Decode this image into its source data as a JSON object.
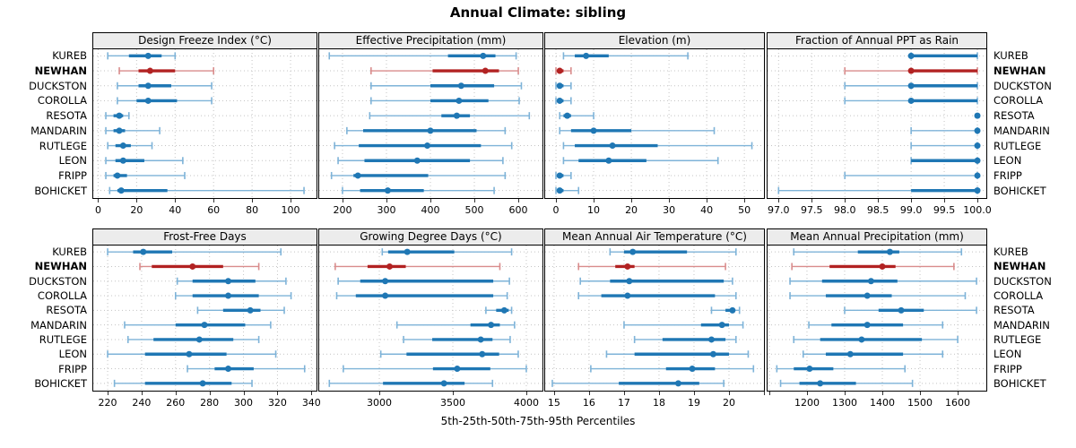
{
  "title": "Annual Climate: sibling",
  "caption": "5th-25th-50th-75th-95th Percentiles",
  "sites": [
    "KUREB",
    "NEWHAN",
    "DUCKSTON",
    "COROLLA",
    "RESOTA",
    "MANDARIN",
    "RUTLEGE",
    "LEON",
    "FRIPP",
    "BOHICKET"
  ],
  "highlight_site": "NEWHAN",
  "colors": {
    "series": "#1f77b4",
    "series_light": "#7eb3d8",
    "highlight": "#b22222",
    "highlight_light": "#d98c8c",
    "grid": "#c4c4c4",
    "strip_bg": "#ececec",
    "border": "#000000"
  },
  "percentiles": [
    "5th",
    "25th",
    "50th",
    "75th",
    "95th"
  ],
  "chart_data": [
    {
      "type": "errorbar-dotplot",
      "title": "Design Freeze Index (°C)",
      "xlim": [
        -3,
        113.5
      ],
      "ticks": [
        0,
        20,
        40,
        60,
        80,
        100
      ],
      "tick_labels": [
        "0",
        "20",
        "40",
        "60",
        "80",
        "100"
      ],
      "extra_ticks": [],
      "series": [
        {
          "name": "KUREB",
          "values": [
            5,
            16,
            26,
            33,
            40
          ]
        },
        {
          "name": "NEWHAN",
          "values": [
            11,
            21,
            27,
            40,
            60
          ]
        },
        {
          "name": "DUCKSTON",
          "values": [
            10,
            21,
            26,
            38,
            59
          ]
        },
        {
          "name": "COROLLA",
          "values": [
            10,
            20,
            26,
            41,
            59
          ]
        },
        {
          "name": "RESOTA",
          "values": [
            4,
            8,
            11,
            13,
            16
          ]
        },
        {
          "name": "MANDARIN",
          "values": [
            4,
            8,
            11,
            14,
            32
          ]
        },
        {
          "name": "RUTLEGE",
          "values": [
            5,
            9,
            13,
            17,
            28
          ]
        },
        {
          "name": "LEON",
          "values": [
            4,
            9,
            13,
            24,
            44
          ]
        },
        {
          "name": "FRIPP",
          "values": [
            4,
            8,
            10,
            15,
            45
          ]
        },
        {
          "name": "BOHICKET",
          "values": [
            6,
            10,
            12,
            36,
            107
          ]
        }
      ]
    },
    {
      "type": "errorbar-dotplot",
      "title": "Effective Precipitation (mm)",
      "xlim": [
        145,
        655
      ],
      "ticks": [
        200,
        300,
        400,
        500,
        600
      ],
      "tick_labels": [
        "200",
        "300",
        "400",
        "500",
        "600"
      ],
      "extra_ticks": [],
      "series": [
        {
          "name": "KUREB",
          "values": [
            170,
            440,
            520,
            548,
            595
          ]
        },
        {
          "name": "NEWHAN",
          "values": [
            265,
            405,
            525,
            556,
            600
          ]
        },
        {
          "name": "DUCKSTON",
          "values": [
            265,
            400,
            470,
            545,
            607
          ]
        },
        {
          "name": "COROLLA",
          "values": [
            265,
            400,
            465,
            532,
            602
          ]
        },
        {
          "name": "RESOTA",
          "values": [
            262,
            425,
            460,
            490,
            625
          ]
        },
        {
          "name": "MANDARIN",
          "values": [
            210,
            247,
            400,
            505,
            570
          ]
        },
        {
          "name": "RUTLEGE",
          "values": [
            182,
            237,
            393,
            515,
            585
          ]
        },
        {
          "name": "LEON",
          "values": [
            190,
            250,
            370,
            490,
            565
          ]
        },
        {
          "name": "FRIPP",
          "values": [
            175,
            225,
            235,
            395,
            570
          ]
        },
        {
          "name": "BOHICKET",
          "values": [
            200,
            240,
            303,
            385,
            545
          ]
        }
      ]
    },
    {
      "type": "errorbar-dotplot",
      "title": "Elevation (m)",
      "xlim": [
        -3.1,
        55.2
      ],
      "ticks": [
        0,
        10,
        20,
        30,
        40,
        50
      ],
      "tick_labels": [
        "0",
        "10",
        "20",
        "30",
        "40",
        "50"
      ],
      "extra_ticks": [],
      "series": [
        {
          "name": "KUREB",
          "values": [
            2,
            5,
            8,
            14,
            35
          ]
        },
        {
          "name": "NEWHAN",
          "values": [
            0,
            0.5,
            1,
            2,
            4
          ]
        },
        {
          "name": "DUCKSTON",
          "values": [
            0,
            0.5,
            1,
            2,
            4
          ]
        },
        {
          "name": "COROLLA",
          "values": [
            0,
            0.5,
            1,
            2,
            4
          ]
        },
        {
          "name": "RESOTA",
          "values": [
            1,
            2,
            3,
            4,
            10
          ]
        },
        {
          "name": "MANDARIN",
          "values": [
            1,
            4,
            10,
            20,
            42
          ]
        },
        {
          "name": "RUTLEGE",
          "values": [
            2,
            5,
            15,
            27,
            52
          ]
        },
        {
          "name": "LEON",
          "values": [
            2,
            6,
            14,
            24,
            43
          ]
        },
        {
          "name": "FRIPP",
          "values": [
            0,
            0.5,
            1,
            2,
            4
          ]
        },
        {
          "name": "BOHICKET",
          "values": [
            0,
            0.5,
            1,
            2,
            6
          ]
        }
      ]
    },
    {
      "type": "errorbar-dotplot",
      "title": "Fraction of Annual PPT as Rain",
      "xlim": [
        96.82,
        100.135
      ],
      "ticks": [
        97.0,
        97.5,
        98.0,
        98.5,
        99.0,
        99.5,
        100.0
      ],
      "tick_labels": [
        "97.0",
        "97.5",
        "98.0",
        "98.5",
        "99.0",
        "99.5",
        "100.0"
      ],
      "extra_ticks": [],
      "series": [
        {
          "name": "KUREB",
          "values": [
            99,
            99,
            99,
            100,
            100
          ]
        },
        {
          "name": "NEWHAN",
          "values": [
            98,
            99,
            99,
            100,
            100
          ]
        },
        {
          "name": "DUCKSTON",
          "values": [
            98,
            99,
            99,
            100,
            100
          ]
        },
        {
          "name": "COROLLA",
          "values": [
            98,
            99,
            99,
            100,
            100
          ]
        },
        {
          "name": "RESOTA",
          "values": [
            100,
            100,
            100,
            100,
            100
          ]
        },
        {
          "name": "MANDARIN",
          "values": [
            99,
            100,
            100,
            100,
            100
          ]
        },
        {
          "name": "RUTLEGE",
          "values": [
            99,
            100,
            100,
            100,
            100
          ]
        },
        {
          "name": "LEON",
          "values": [
            99,
            99,
            100,
            100,
            100
          ]
        },
        {
          "name": "FRIPP",
          "values": [
            98,
            100,
            100,
            100,
            100
          ]
        },
        {
          "name": "BOHICKET",
          "values": [
            97,
            99,
            100,
            100,
            100
          ]
        }
      ]
    },
    {
      "type": "errorbar-dotplot",
      "title": "Frost-Free Days",
      "xlim": [
        211,
        343
      ],
      "ticks": [
        220,
        240,
        260,
        280,
        300,
        320,
        340
      ],
      "tick_labels": [
        "220",
        "240",
        "260",
        "280",
        "300",
        "320",
        "340"
      ],
      "extra_ticks": [],
      "series": [
        {
          "name": "KUREB",
          "values": [
            220,
            235,
            241,
            258,
            322
          ]
        },
        {
          "name": "NEWHAN",
          "values": [
            239,
            246,
            270,
            288,
            309
          ]
        },
        {
          "name": "DUCKSTON",
          "values": [
            261,
            270,
            291,
            307,
            325
          ]
        },
        {
          "name": "COROLLA",
          "values": [
            260,
            270,
            291,
            309,
            328
          ]
        },
        {
          "name": "RESOTA",
          "values": [
            273,
            288,
            304,
            310,
            324
          ]
        },
        {
          "name": "MANDARIN",
          "values": [
            230,
            260,
            277,
            301,
            316
          ]
        },
        {
          "name": "RUTLEGE",
          "values": [
            232,
            247,
            274,
            294,
            309
          ]
        },
        {
          "name": "LEON",
          "values": [
            220,
            242,
            268,
            290,
            319
          ]
        },
        {
          "name": "FRIPP",
          "values": [
            267,
            283,
            291,
            306,
            336
          ]
        },
        {
          "name": "BOHICKET",
          "values": [
            224,
            242,
            276,
            293,
            305
          ]
        }
      ]
    },
    {
      "type": "errorbar-dotplot",
      "title": "Growing Degree Days (°C)",
      "xlim": [
        2585,
        4110
      ],
      "ticks": [
        3000,
        3500,
        4000
      ],
      "tick_labels": [
        "3000",
        "3500",
        "4000"
      ],
      "extra_ticks": [],
      "series": [
        {
          "name": "KUREB",
          "values": [
            3020,
            3060,
            3190,
            3510,
            3900
          ]
        },
        {
          "name": "NEWHAN",
          "values": [
            2700,
            2920,
            3070,
            3180,
            3820
          ]
        },
        {
          "name": "DUCKSTON",
          "values": [
            2720,
            2870,
            3040,
            3775,
            3885
          ]
        },
        {
          "name": "COROLLA",
          "values": [
            2710,
            2840,
            3040,
            3775,
            3870
          ]
        },
        {
          "name": "RESOTA",
          "values": [
            3725,
            3795,
            3850,
            3880,
            3900
          ]
        },
        {
          "name": "MANDARIN",
          "values": [
            3120,
            3620,
            3760,
            3820,
            3920
          ]
        },
        {
          "name": "RUTLEGE",
          "values": [
            3165,
            3360,
            3690,
            3770,
            3890
          ]
        },
        {
          "name": "LEON",
          "values": [
            3010,
            3185,
            3700,
            3815,
            3945
          ]
        },
        {
          "name": "FRIPP",
          "values": [
            2755,
            3365,
            3530,
            3755,
            4000
          ]
        },
        {
          "name": "BOHICKET",
          "values": [
            2660,
            3025,
            3440,
            3580,
            3770
          ]
        }
      ]
    },
    {
      "type": "errorbar-dotplot",
      "title": "Mean Annual Air Temperature (°C)",
      "xlim": [
        14.72,
        21.0
      ],
      "ticks": [
        15,
        16,
        17,
        18,
        19,
        20
      ],
      "tick_labels": [
        "15",
        "16",
        "17",
        "18",
        "19",
        "20"
      ],
      "extra_ticks": [
        21
      ],
      "series": [
        {
          "name": "KUREB",
          "values": [
            16.6,
            17.0,
            17.25,
            18.8,
            20.2
          ]
        },
        {
          "name": "NEWHAN",
          "values": [
            15.7,
            16.75,
            17.1,
            17.3,
            19.9
          ]
        },
        {
          "name": "DUCKSTON",
          "values": [
            15.75,
            16.6,
            17.15,
            19.85,
            20.1
          ]
        },
        {
          "name": "COROLLA",
          "values": [
            15.7,
            16.35,
            17.1,
            19.6,
            20.2
          ]
        },
        {
          "name": "RESOTA",
          "values": [
            19.5,
            19.9,
            20.1,
            20.15,
            20.3
          ]
        },
        {
          "name": "MANDARIN",
          "values": [
            17.0,
            19.2,
            19.8,
            20.0,
            20.4
          ]
        },
        {
          "name": "RUTLEGE",
          "values": [
            17.3,
            18.1,
            19.5,
            19.9,
            20.2
          ]
        },
        {
          "name": "LEON",
          "values": [
            16.5,
            17.3,
            19.55,
            20.0,
            20.55
          ]
        },
        {
          "name": "FRIPP",
          "values": [
            16.05,
            18.2,
            18.95,
            19.6,
            20.7
          ]
        },
        {
          "name": "BOHICKET",
          "values": [
            14.95,
            16.85,
            18.55,
            19.15,
            19.85
          ]
        }
      ]
    },
    {
      "type": "errorbar-dotplot",
      "title": "Mean Annual Precipitation (mm)",
      "xlim": [
        1093,
        1676
      ],
      "ticks": [
        1200,
        1300,
        1400,
        1500,
        1600
      ],
      "tick_labels": [
        "1200",
        "1300",
        "1400",
        "1500",
        "1600"
      ],
      "extra_ticks": [
        1100
      ],
      "series": [
        {
          "name": "KUREB",
          "values": [
            1165,
            1335,
            1420,
            1445,
            1610
          ]
        },
        {
          "name": "NEWHAN",
          "values": [
            1160,
            1260,
            1400,
            1435,
            1590
          ]
        },
        {
          "name": "DUCKSTON",
          "values": [
            1155,
            1240,
            1370,
            1440,
            1650
          ]
        },
        {
          "name": "COROLLA",
          "values": [
            1155,
            1250,
            1360,
            1425,
            1620
          ]
        },
        {
          "name": "RESOTA",
          "values": [
            1300,
            1390,
            1450,
            1510,
            1650
          ]
        },
        {
          "name": "MANDARIN",
          "values": [
            1205,
            1265,
            1360,
            1455,
            1560
          ]
        },
        {
          "name": "RUTLEGE",
          "values": [
            1165,
            1235,
            1345,
            1505,
            1600
          ]
        },
        {
          "name": "LEON",
          "values": [
            1190,
            1250,
            1315,
            1455,
            1560
          ]
        },
        {
          "name": "FRIPP",
          "values": [
            1120,
            1165,
            1207,
            1270,
            1460
          ]
        },
        {
          "name": "BOHICKET",
          "values": [
            1130,
            1180,
            1235,
            1330,
            1480
          ]
        }
      ]
    }
  ]
}
